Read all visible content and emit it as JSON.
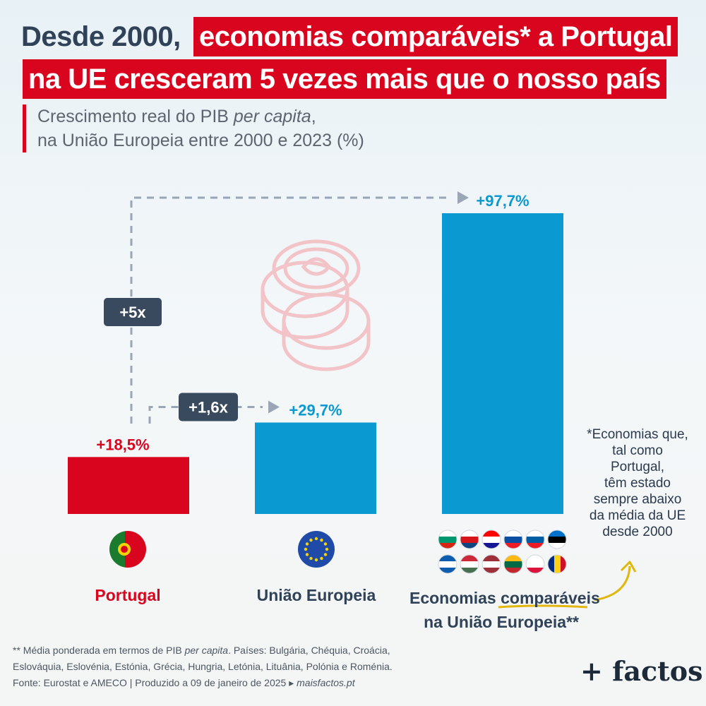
{
  "title": {
    "part1": "Desde 2000,",
    "part2": "economias comparáveis* a Portugal",
    "part3": "na UE cresceram 5 vezes mais que o nosso país"
  },
  "subtitle": {
    "line1_a": "Crescimento real do PIB ",
    "line1_em": "per capita",
    "line1_b": ",",
    "line2": "na União Europeia entre 2000 e 2023 (%)"
  },
  "chart_data": {
    "type": "bar",
    "categories": [
      "Portugal",
      "União Europeia",
      "Economias comparáveis na União Europeia**"
    ],
    "values": [
      18.5,
      29.7,
      97.7
    ],
    "value_labels": [
      "+18,5%",
      "+29,7%",
      "+97,7%"
    ],
    "colors": [
      "#d9051f",
      "#0a99d0",
      "#0a99d0"
    ],
    "label_colors": [
      "#d9051f",
      "#0a99d0",
      "#0a99d0"
    ],
    "ylim": [
      0,
      100
    ],
    "comparisons": [
      {
        "label": "+1,6x",
        "from": 0,
        "to": 1
      },
      {
        "label": "+5x",
        "from": 0,
        "to": 2
      }
    ]
  },
  "categories": {
    "portugal": "Portugal",
    "eu": "União Europeia",
    "comparable_1": "Economias ",
    "comparable_2": "comparáveis",
    "comparable_3": "na União Europeia**"
  },
  "flags": {
    "comparable_countries": [
      "Bulgária",
      "Chéquia",
      "Croácia",
      "Eslováquia",
      "Eslovénia",
      "Estónia",
      "Grécia",
      "Hungria",
      "Letónia",
      "Lituânia",
      "Polónia",
      "Roménia"
    ]
  },
  "note": {
    "line1": "*Economias que,",
    "line2": "tal como",
    "line3": "Portugal,",
    "line4": "têm estado",
    "line5": "sempre abaixo",
    "line6": "da média da UE",
    "line7": "desde 2000"
  },
  "footer": {
    "line1_a": "** Média ponderada em termos de PIB ",
    "line1_em": "per capita",
    "line1_b": ". Países: Bulgária, Chéquia, Croácia,",
    "line2": "Eslováquia, Eslovénia, Estónia, Grécia, Hungria, Letónia, Lituânia, Polónia e Roménia.",
    "line3_a": "Fonte: Eurostat e AMECO  |  Produzido a 09 de janeiro de 2025 ▸ ",
    "line3_em": "maisfactos.pt"
  },
  "logo": "+ factos"
}
